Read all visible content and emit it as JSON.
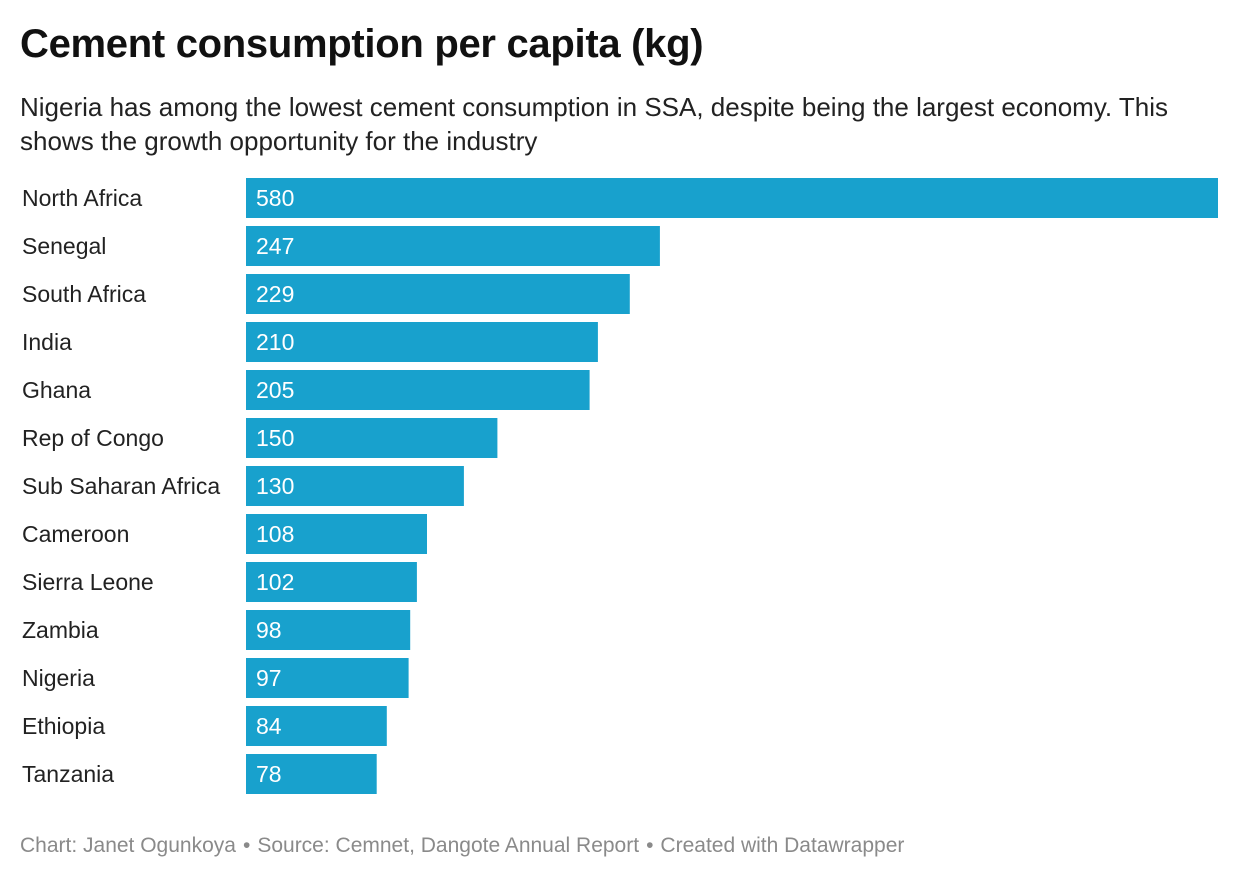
{
  "colors": {
    "bar": "#18a1cd",
    "bar_label": "#ffffff",
    "category_label": "#222222"
  },
  "chart_data": {
    "type": "bar",
    "orientation": "horizontal",
    "title": "Cement consumption per capita (kg)",
    "subtitle": "Nigeria has among the lowest cement consumption in SSA, despite being the largest economy. This shows the growth opportunity for the industry",
    "xlabel": "",
    "ylabel": "",
    "xlim": [
      0,
      580
    ],
    "grid": false,
    "legend": "none",
    "categories": [
      "North Africa",
      "Senegal",
      "South Africa",
      "India",
      "Ghana",
      "Rep of Congo",
      "Sub Saharan Africa",
      "Cameroon",
      "Sierra Leone",
      "Zambia",
      "Nigeria",
      "Ethiopia",
      "Tanzania"
    ],
    "values": [
      580,
      247,
      229,
      210,
      205,
      150,
      130,
      108,
      102,
      98,
      97,
      84,
      78
    ]
  },
  "footer": {
    "credit": "Chart: Janet Ogunkoya",
    "source": "Source: Cemnet, Dangote Annual Report",
    "tool": "Created with Datawrapper",
    "separator": "•"
  }
}
